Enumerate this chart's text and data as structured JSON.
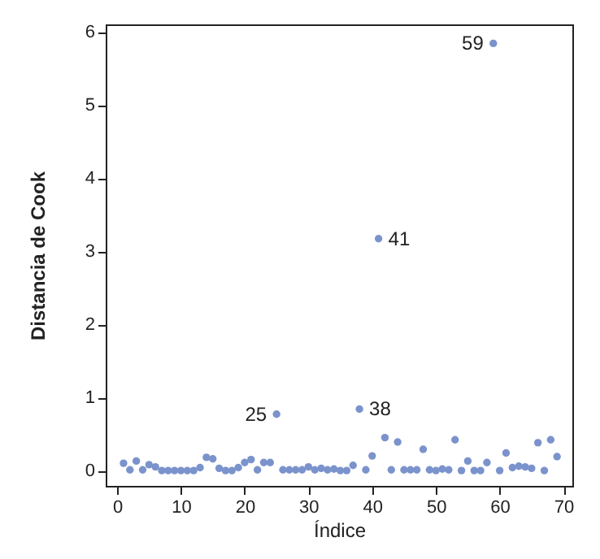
{
  "chart_data": {
    "type": "scatter",
    "xlabel": "Índice",
    "ylabel": "Distancia de Cook",
    "x": [
      1,
      2,
      3,
      4,
      5,
      6,
      7,
      8,
      9,
      10,
      11,
      12,
      13,
      14,
      15,
      16,
      17,
      18,
      19,
      20,
      21,
      22,
      23,
      24,
      25,
      26,
      27,
      28,
      29,
      30,
      31,
      32,
      33,
      34,
      35,
      36,
      37,
      38,
      39,
      40,
      41,
      42,
      43,
      44,
      45,
      46,
      47,
      48,
      49,
      50,
      51,
      52,
      53,
      54,
      55,
      56,
      57,
      58,
      59,
      60,
      61,
      62,
      63,
      64,
      65,
      66,
      67,
      68,
      69
    ],
    "series": [
      {
        "color": "#7b93cc",
        "values": [
          0.1,
          0.01,
          0.13,
          0.01,
          0.08,
          0.05,
          0,
          0,
          0,
          0,
          0,
          0,
          0.04,
          0.18,
          0.16,
          0.03,
          0,
          0,
          0.04,
          0.11,
          0.15,
          0.01,
          0.11,
          0.11,
          0.77,
          0.01,
          0.01,
          0.01,
          0.01,
          0.05,
          0.01,
          0.03,
          0.01,
          0.02,
          0,
          0,
          0.07,
          0.84,
          0.01,
          0.2,
          3.17,
          0.45,
          0.01,
          0.39,
          0.01,
          0.01,
          0.01,
          0.29,
          0.01,
          0,
          0.02,
          0.01,
          0.42,
          0,
          0.13,
          0,
          0,
          0.11,
          5.84,
          0,
          0.24,
          0.04,
          0.06,
          0.05,
          0.03,
          0.38,
          0,
          0.42,
          0.19
        ]
      }
    ],
    "xlim": [
      -1.8,
      71.4
    ],
    "ylim": [
      -0.21,
      6.1
    ],
    "xticks": [
      0,
      10,
      20,
      30,
      40,
      50,
      60,
      70
    ],
    "yticks": [
      0,
      1,
      2,
      3,
      4,
      5,
      6
    ],
    "grid": false,
    "marker": "circle",
    "annotations": [
      {
        "text": "59",
        "x": 59,
        "y": 5.84
      },
      {
        "text": "41",
        "x": 41,
        "y": 3.17
      },
      {
        "text": "38",
        "x": 38,
        "y": 0.84
      },
      {
        "text": "25",
        "x": 25,
        "y": 0.77
      }
    ]
  }
}
